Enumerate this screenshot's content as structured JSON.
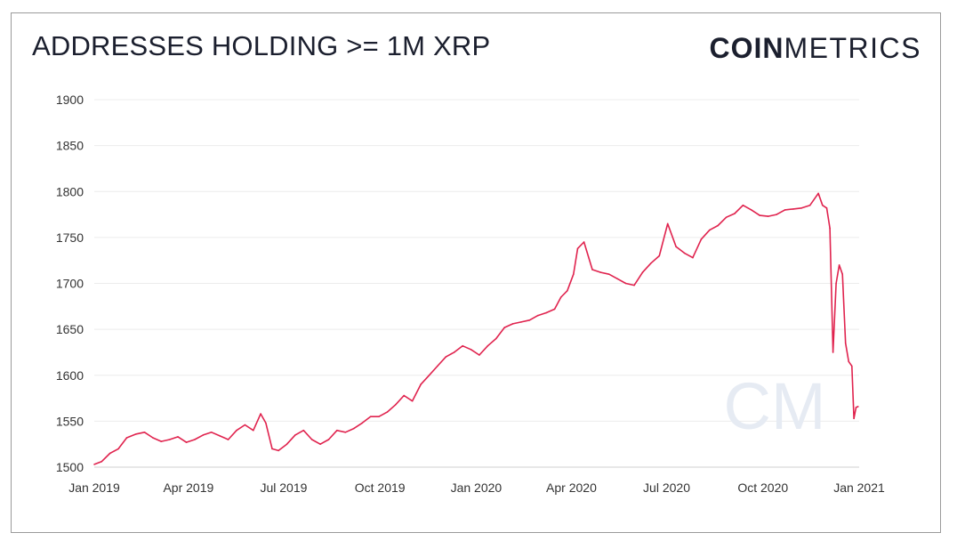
{
  "header": {
    "title": "ADDRESSES HOLDING >= 1M XRP",
    "brand_bold": "COIN",
    "brand_light": "METRICS",
    "watermark": "CM"
  },
  "colors": {
    "series_line": "#e0234e",
    "grid": "#ececec",
    "text": "#1b1f2e",
    "watermark": "#e6ebf3"
  },
  "chart_data": {
    "type": "line",
    "title": "ADDRESSES HOLDING >= 1M XRP",
    "xlabel": "",
    "ylabel": "",
    "ylim": [
      1500,
      1900
    ],
    "yticks": [
      1500,
      1550,
      1600,
      1650,
      1700,
      1750,
      1800,
      1850,
      1900
    ],
    "xlim": [
      "2019-01-01",
      "2021-01-01"
    ],
    "xticks": [
      {
        "date": "2019-01-01",
        "label": "Jan 2019"
      },
      {
        "date": "2019-04-01",
        "label": "Apr 2019"
      },
      {
        "date": "2019-07-01",
        "label": "Jul 2019"
      },
      {
        "date": "2019-10-01",
        "label": "Oct 2019"
      },
      {
        "date": "2020-01-01",
        "label": "Jan 2020"
      },
      {
        "date": "2020-04-01",
        "label": "Apr 2020"
      },
      {
        "date": "2020-07-01",
        "label": "Jul 2020"
      },
      {
        "date": "2020-10-01",
        "label": "Oct 2020"
      },
      {
        "date": "2021-01-01",
        "label": "Jan 2021"
      }
    ],
    "grid": true,
    "legend": "none",
    "series": [
      {
        "x": [
          "2019-01-01",
          "2019-01-08",
          "2019-01-16",
          "2019-01-24",
          "2019-02-01",
          "2019-02-10",
          "2019-02-18",
          "2019-02-26",
          "2019-03-06",
          "2019-03-14",
          "2019-03-22",
          "2019-03-30",
          "2019-04-07",
          "2019-04-15",
          "2019-04-23",
          "2019-05-01",
          "2019-05-09",
          "2019-05-17",
          "2019-05-25",
          "2019-06-02",
          "2019-06-09",
          "2019-06-14",
          "2019-06-20",
          "2019-06-26",
          "2019-07-04",
          "2019-07-12",
          "2019-07-20",
          "2019-07-28",
          "2019-08-05",
          "2019-08-13",
          "2019-08-21",
          "2019-08-29",
          "2019-09-06",
          "2019-09-14",
          "2019-09-22",
          "2019-09-30",
          "2019-10-08",
          "2019-10-16",
          "2019-10-24",
          "2019-11-01",
          "2019-11-09",
          "2019-11-17",
          "2019-11-25",
          "2019-12-03",
          "2019-12-11",
          "2019-12-19",
          "2019-12-27",
          "2020-01-04",
          "2020-01-12",
          "2020-01-20",
          "2020-01-28",
          "2020-02-05",
          "2020-02-13",
          "2020-02-21",
          "2020-02-29",
          "2020-03-08",
          "2020-03-16",
          "2020-03-22",
          "2020-03-28",
          "2020-04-03",
          "2020-04-07",
          "2020-04-13",
          "2020-04-21",
          "2020-04-29",
          "2020-05-07",
          "2020-05-15",
          "2020-05-23",
          "2020-05-31",
          "2020-06-08",
          "2020-06-16",
          "2020-06-24",
          "2020-07-02",
          "2020-07-10",
          "2020-07-18",
          "2020-07-26",
          "2020-08-03",
          "2020-08-11",
          "2020-08-19",
          "2020-08-27",
          "2020-09-04",
          "2020-09-12",
          "2020-09-20",
          "2020-09-28",
          "2020-10-06",
          "2020-10-14",
          "2020-10-22",
          "2020-10-30",
          "2020-11-07",
          "2020-11-15",
          "2020-11-23",
          "2020-11-27",
          "2020-12-01",
          "2020-12-04",
          "2020-12-07",
          "2020-12-10",
          "2020-12-13",
          "2020-12-16",
          "2020-12-19",
          "2020-12-22",
          "2020-12-25",
          "2020-12-27",
          "2020-12-29",
          "2020-12-31"
        ],
        "values": [
          1503,
          1506,
          1515,
          1520,
          1532,
          1536,
          1538,
          1532,
          1528,
          1530,
          1533,
          1527,
          1530,
          1535,
          1538,
          1534,
          1530,
          1540,
          1546,
          1540,
          1558,
          1548,
          1520,
          1518,
          1525,
          1535,
          1540,
          1530,
          1525,
          1530,
          1540,
          1538,
          1542,
          1548,
          1555,
          1555,
          1560,
          1568,
          1578,
          1572,
          1590,
          1600,
          1610,
          1620,
          1625,
          1632,
          1628,
          1622,
          1632,
          1640,
          1652,
          1656,
          1658,
          1660,
          1665,
          1668,
          1672,
          1685,
          1692,
          1710,
          1738,
          1745,
          1715,
          1712,
          1710,
          1705,
          1700,
          1698,
          1712,
          1722,
          1730,
          1765,
          1740,
          1733,
          1728,
          1748,
          1758,
          1763,
          1772,
          1776,
          1785,
          1780,
          1774,
          1773,
          1775,
          1780,
          1781,
          1782,
          1785,
          1798,
          1785,
          1782,
          1760,
          1625,
          1700,
          1720,
          1710,
          1635,
          1615,
          1610,
          1553,
          1565,
          1566
        ]
      }
    ]
  }
}
